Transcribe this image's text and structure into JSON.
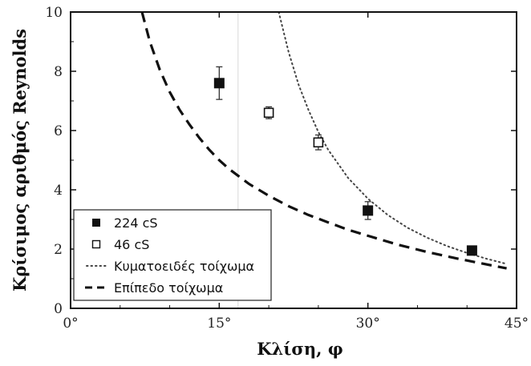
{
  "chart_data": {
    "type": "scatter",
    "xlabel": "Κλίση, φ",
    "ylabel": "Κρίσιμος αριθμός Reynolds",
    "xlim": [
      0,
      45
    ],
    "ylim": [
      0,
      10
    ],
    "x_ticks": [
      0,
      15,
      30,
      45
    ],
    "x_tick_labels": [
      "0°",
      "15°",
      "30°",
      "45°"
    ],
    "y_ticks": [
      0,
      2,
      4,
      6,
      8,
      10
    ],
    "y_tick_labels": [
      "0",
      "2",
      "4",
      "6",
      "8",
      "10"
    ],
    "grid": false,
    "legend_position": "bottom-left",
    "series": [
      {
        "name": "224 cS",
        "kind": "points",
        "marker": "filled-square",
        "color": "#111111",
        "points": [
          {
            "x": 15,
            "y": 7.6,
            "err": 0.55
          },
          {
            "x": 30,
            "y": 3.3,
            "err": 0.3
          },
          {
            "x": 40.5,
            "y": 1.95,
            "err": 0.12
          }
        ]
      },
      {
        "name": "46 cS",
        "kind": "points",
        "marker": "open-square",
        "color": "#111111",
        "points": [
          {
            "x": 20,
            "y": 6.6,
            "err": 0.2
          },
          {
            "x": 25,
            "y": 5.6,
            "err": 0.25
          }
        ]
      },
      {
        "name": "Κυματοειδές τοίχωμα",
        "kind": "curve",
        "style": "dotted",
        "color": "#444444",
        "x": [
          21.0,
          22,
          23,
          24,
          25,
          26,
          28,
          30,
          32,
          34,
          36,
          38,
          40,
          42,
          44
        ],
        "y": [
          10.0,
          8.65,
          7.55,
          6.7,
          5.95,
          5.35,
          4.4,
          3.7,
          3.15,
          2.72,
          2.38,
          2.1,
          1.87,
          1.67,
          1.5
        ]
      },
      {
        "name": "Επίπεδο τοίχωμα",
        "kind": "curve",
        "style": "dashed",
        "color": "#111111",
        "x": [
          7.2,
          8,
          9,
          10,
          11,
          12,
          13,
          14,
          15,
          16,
          17,
          18,
          20,
          22,
          24,
          26,
          28,
          30,
          33,
          36,
          39,
          42,
          44
        ],
        "y": [
          10.0,
          9.0,
          8.05,
          7.3,
          6.7,
          6.2,
          5.75,
          5.35,
          5.0,
          4.7,
          4.45,
          4.2,
          3.8,
          3.45,
          3.15,
          2.9,
          2.65,
          2.45,
          2.15,
          1.9,
          1.68,
          1.48,
          1.35
        ]
      }
    ]
  }
}
